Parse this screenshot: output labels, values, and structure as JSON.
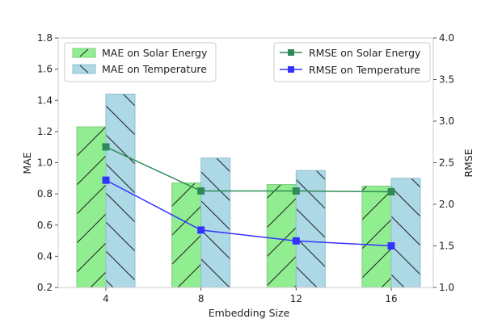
{
  "chart_data": {
    "type": "bar",
    "categories": [
      "4",
      "8",
      "12",
      "16"
    ],
    "xlabel": "Embedding Size",
    "ylabel_left": "MAE",
    "ylabel_right": "RMSE",
    "ylim_left": [
      0.2,
      1.8
    ],
    "ylim_right": [
      1.0,
      4.0
    ],
    "yticks_left": [
      "0.2",
      "0.4",
      "0.6",
      "0.8",
      "1.0",
      "1.2",
      "1.4",
      "1.6",
      "1.8"
    ],
    "yticks_right": [
      "1.0",
      "1.5",
      "2.0",
      "2.5",
      "3.0",
      "3.5",
      "4.0"
    ],
    "bar_series": [
      {
        "name": "MAE on Solar Energy",
        "values": [
          1.23,
          0.87,
          0.86,
          0.85
        ],
        "color": "#90ee90"
      },
      {
        "name": "MAE on Temperature",
        "values": [
          1.44,
          1.03,
          0.95,
          0.9
        ],
        "color": "#add8e6"
      }
    ],
    "line_series": [
      {
        "name": "RMSE on Solar Energy",
        "values": [
          2.69,
          2.16,
          2.16,
          2.15
        ],
        "color": "#2e8b57"
      },
      {
        "name": "RMSE on Temperature",
        "values": [
          2.29,
          1.69,
          1.56,
          1.5
        ],
        "color": "#3333ff"
      }
    ],
    "legend_left_position": "upper-left",
    "legend_right_position": "upper-right",
    "grid": false
  }
}
